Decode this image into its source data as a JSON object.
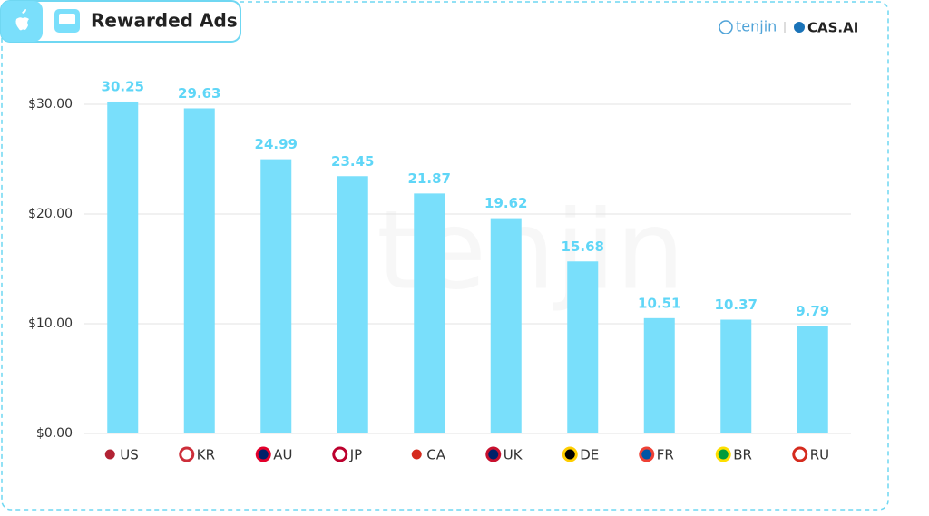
{
  "chart_data": {
    "type": "bar",
    "title": "Rewarded Ads",
    "logos": [
      "tenjin",
      "CAS.AI"
    ],
    "watermark": "tenjin",
    "categories": [
      "US",
      "KR",
      "AU",
      "JP",
      "CA",
      "UK",
      "DE",
      "FR",
      "BR",
      "RU"
    ],
    "values": [
      30.25,
      29.63,
      24.99,
      23.45,
      21.87,
      19.62,
      15.68,
      10.51,
      10.37,
      9.79
    ],
    "color": "#79dffb",
    "label_color": "#5fd6f7",
    "ylim": [
      0,
      30
    ],
    "yticks": [
      {
        "value": 0,
        "label": "$0.00"
      },
      {
        "value": 10,
        "label": "$10.00"
      },
      {
        "value": 20,
        "label": "$20.00"
      },
      {
        "value": 30,
        "label": "$30.00"
      }
    ],
    "grid": true
  }
}
